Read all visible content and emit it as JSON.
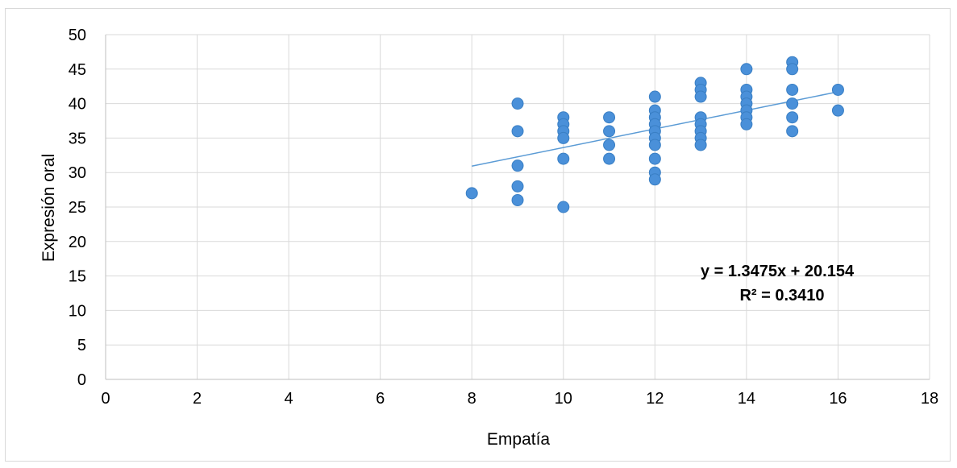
{
  "chart_data": {
    "type": "scatter",
    "title": "",
    "xlabel": "Empatía",
    "ylabel": "Expresión oral",
    "xlim": [
      0,
      18
    ],
    "ylim": [
      0,
      50
    ],
    "x_ticks": [
      "0",
      "2",
      "4",
      "6",
      "8",
      "10",
      "12",
      "14",
      "16",
      "18"
    ],
    "y_ticks": [
      "0",
      "5",
      "10",
      "15",
      "20",
      "25",
      "30",
      "35",
      "40",
      "45",
      "50"
    ],
    "grid": true,
    "legend": "none",
    "marker_color": "#4a90d9",
    "trendline_color": "#5b9bd5",
    "points": [
      [
        8,
        27
      ],
      [
        9,
        40
      ],
      [
        9,
        36
      ],
      [
        9,
        31
      ],
      [
        9,
        28
      ],
      [
        9,
        26
      ],
      [
        10,
        38
      ],
      [
        10,
        37
      ],
      [
        10,
        36
      ],
      [
        10,
        35
      ],
      [
        10,
        32
      ],
      [
        10,
        25
      ],
      [
        11,
        38
      ],
      [
        11,
        36
      ],
      [
        11,
        34
      ],
      [
        11,
        32
      ],
      [
        12,
        41
      ],
      [
        12,
        39
      ],
      [
        12,
        38
      ],
      [
        12,
        37
      ],
      [
        12,
        36
      ],
      [
        12,
        35
      ],
      [
        12,
        34
      ],
      [
        12,
        32
      ],
      [
        12,
        30
      ],
      [
        12,
        29
      ],
      [
        13,
        43
      ],
      [
        13,
        42
      ],
      [
        13,
        41
      ],
      [
        13,
        38
      ],
      [
        13,
        37
      ],
      [
        13,
        36
      ],
      [
        13,
        35
      ],
      [
        13,
        34
      ],
      [
        14,
        45
      ],
      [
        14,
        42
      ],
      [
        14,
        41
      ],
      [
        14,
        40
      ],
      [
        14,
        39
      ],
      [
        14,
        38
      ],
      [
        14,
        37
      ],
      [
        15,
        46
      ],
      [
        15,
        45
      ],
      [
        15,
        42
      ],
      [
        15,
        40
      ],
      [
        15,
        38
      ],
      [
        15,
        36
      ],
      [
        16,
        42
      ],
      [
        16,
        39
      ]
    ],
    "trendline": {
      "slope": 1.3475,
      "intercept": 20.154,
      "x_range": [
        8,
        16
      ]
    },
    "equation_text": "y = 1.3475x + 20.154",
    "r2_text": "R² = 0.3410"
  }
}
